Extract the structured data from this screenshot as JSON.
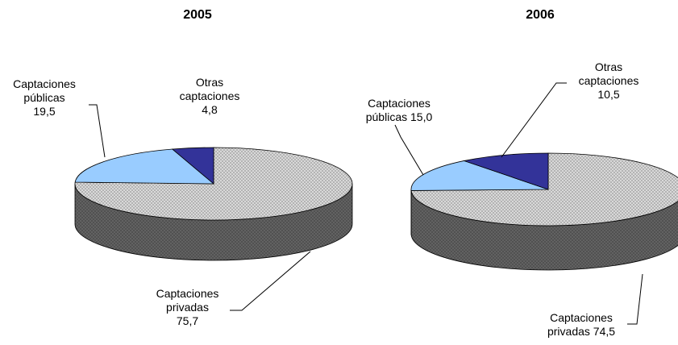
{
  "chart_data": [
    {
      "type": "pie",
      "title": "2005",
      "categories": [
        "Captaciones privadas",
        "Captaciones públicas",
        "Otras captaciones"
      ],
      "values": [
        75.7,
        19.5,
        4.8
      ],
      "value_labels": [
        "75,7",
        "19,5",
        "4,8"
      ],
      "colors": [
        "#d9d9d9",
        "#99ccff",
        "#333399"
      ]
    },
    {
      "type": "pie",
      "title": "2006",
      "categories": [
        "Captaciones privadas",
        "Captaciones públicas",
        "Otras captaciones"
      ],
      "values": [
        74.5,
        15.0,
        10.5
      ],
      "value_labels": [
        "74,5",
        "15,0",
        "10,5"
      ],
      "colors": [
        "#d9d9d9",
        "#99ccff",
        "#333399"
      ]
    }
  ]
}
